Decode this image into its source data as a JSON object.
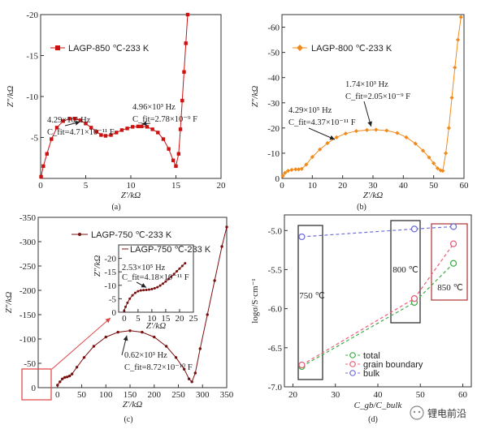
{
  "chart_data": [
    {
      "type": "line",
      "panel": "(a)",
      "xlabel": "Z′/kΩ",
      "ylabel": "Z″/kΩ",
      "xlim": [
        0,
        20
      ],
      "ylim": [
        0,
        -20
      ],
      "xticks": [
        0,
        5,
        10,
        15,
        20
      ],
      "yticks": [
        -20,
        -15,
        -10,
        -5
      ],
      "color": "#cc1111",
      "marker": "square",
      "series": [
        {
          "name": "LAGP-850 ℃-233 K",
          "x": [
            0.05,
            0.3,
            0.7,
            1.2,
            1.8,
            2.5,
            3.2,
            3.8,
            4.4,
            5.0,
            5.6,
            6.2,
            6.7,
            7.2,
            7.8,
            8.4,
            9.0,
            9.6,
            10.2,
            10.8,
            11.2,
            11.8,
            12.4,
            13.0,
            13.6,
            14.2,
            14.7,
            15.0,
            15.3,
            15.5,
            15.7,
            15.9,
            16.1,
            16.3
          ],
          "y": [
            -0.2,
            -1.5,
            -3.0,
            -4.8,
            -6.2,
            -7.0,
            -7.3,
            -7.3,
            -7.1,
            -6.7,
            -6.2,
            -5.7,
            -5.3,
            -5.2,
            -5.3,
            -5.6,
            -5.9,
            -6.1,
            -6.3,
            -6.35,
            -6.35,
            -6.3,
            -6.0,
            -5.6,
            -4.8,
            -3.6,
            -2.2,
            -1.5,
            -3.0,
            -6.0,
            -9.5,
            -13.0,
            -16.5,
            -20.0
          ]
        }
      ],
      "annotations": [
        {
          "text": "4.29×10⁵ Hz",
          "at_x": 4.2,
          "at_y": -7.3
        },
        {
          "text": "C_fit=4.71×10⁻¹¹ F"
        },
        {
          "text": "4.96×10³ Hz",
          "at_x": 11.2,
          "at_y": -6.35
        },
        {
          "text": "C_fit=2.78×10⁻⁹ F"
        }
      ]
    },
    {
      "type": "line",
      "panel": "(b)",
      "xlabel": "Z′/kΩ",
      "ylabel": "Z″/kΩ",
      "xlim": [
        0,
        60
      ],
      "ylim": [
        0,
        -65
      ],
      "xticks": [
        0,
        10,
        20,
        30,
        40,
        50,
        60
      ],
      "yticks": [
        -60,
        -50,
        -40,
        -30,
        -20,
        -10,
        0
      ],
      "color": "#f08a1c",
      "marker": "diamond",
      "series": [
        {
          "name": "LAGP-800 ℃-233 K",
          "x": [
            0.3,
            1.0,
            2.0,
            3.2,
            4.5,
            5.5,
            6.5,
            8.0,
            10.0,
            12.5,
            15.0,
            18.0,
            21.0,
            24.5,
            28.0,
            31.0,
            34.5,
            38.0,
            41.0,
            44.0,
            46.5,
            48.5,
            50.0,
            51.3,
            52.3,
            53.0,
            54.0,
            55.0,
            56.0,
            57.0,
            58.0,
            59.0
          ],
          "y": [
            -1.0,
            -2.2,
            -3.0,
            -3.4,
            -3.6,
            -3.6,
            -3.8,
            -5.5,
            -8.5,
            -11.5,
            -14.0,
            -16.3,
            -17.8,
            -18.8,
            -19.2,
            -19.3,
            -19.0,
            -18.0,
            -16.3,
            -13.8,
            -11.0,
            -8.3,
            -6.0,
            -4.0,
            -3.2,
            -3.0,
            -10.0,
            -20.0,
            -32.0,
            -44.0,
            -55.0,
            -64.0
          ]
        }
      ],
      "annotations": [
        {
          "text": "4.29×10⁵ Hz",
          "at_x": 3.2,
          "at_y": -3.4
        },
        {
          "text": "C_fit=4.37×10⁻¹¹ F"
        },
        {
          "text": "1.74×10³ Hz",
          "at_x": 31.0,
          "at_y": -19.3
        },
        {
          "text": "C_fit=2.05×10⁻⁹ F"
        }
      ]
    },
    {
      "type": "line",
      "panel": "(c)",
      "xlabel": "Z′/kΩ",
      "ylabel": "Z″/kΩ",
      "xlim": [
        -40,
        350
      ],
      "ylim": [
        0,
        -350
      ],
      "xticks": [
        0,
        50,
        100,
        150,
        200,
        250,
        300,
        350
      ],
      "yticks": [
        -350,
        -300,
        -250,
        -200,
        -150,
        -100,
        -50,
        0
      ],
      "color": "#7a1010",
      "marker": "dot",
      "series": [
        {
          "name": "LAGP-750 ℃-233 K",
          "x": [
            0,
            5,
            10,
            15,
            20,
            25,
            30,
            40,
            55,
            75,
            100,
            125,
            150,
            175,
            200,
            225,
            245,
            262,
            272,
            278,
            285,
            295,
            310,
            325,
            340,
            350
          ],
          "y": [
            -5,
            -12,
            -18,
            -21,
            -22,
            -24,
            -28,
            -42,
            -62,
            -85,
            -104,
            -114,
            -117,
            -114,
            -104,
            -85,
            -62,
            -38,
            -18,
            -12,
            -30,
            -80,
            -150,
            -220,
            -290,
            -330
          ]
        }
      ],
      "inset": {
        "xlim": [
          -2,
          25
        ],
        "ylim": [
          0,
          -25
        ],
        "xticks": [
          0,
          5,
          10,
          15,
          20,
          25
        ],
        "yticks": [
          -20,
          -15,
          -10,
          -5,
          0
        ],
        "xlabel": "Z′/kΩ",
        "ylabel": "Z″/kΩ",
        "series": [
          {
            "name": "LAGP-750 ℃-233 K",
            "x": [
              0.0,
              0.5,
              1.2,
              2.0,
              3.0,
              4.0,
              5.0,
              6.0,
              7.0,
              8.0,
              9.0,
              10.0,
              11.0,
              12.0,
              13.0,
              14.0,
              15.0,
              16.0,
              17.0,
              18.0,
              19.0,
              20.0,
              21.0,
              22.0
            ],
            "y": [
              -0.5,
              -2.0,
              -3.5,
              -5.0,
              -6.3,
              -7.2,
              -7.8,
              -8.1,
              -8.2,
              -8.3,
              -8.4,
              -8.6,
              -8.9,
              -9.3,
              -9.9,
              -10.6,
              -11.4,
              -12.3,
              -13.2,
              -14.2,
              -15.2,
              -16.2,
              -17.2,
              -18.2
            ]
          }
        ]
      },
      "annotations": [
        {
          "text": "2.53×10⁵ Hz",
          "at_x": 8.0,
          "at_y": -8.3
        },
        {
          "text": "C_fit=4.18×10⁻¹¹ F"
        },
        {
          "text": "0.62×10³ Hz",
          "at_x": 150,
          "at_y": -117
        },
        {
          "text": "C_fit=8.72×10⁻¹⁰ F"
        }
      ]
    },
    {
      "type": "scatter",
      "panel": "(d)",
      "xlabel": "C_gb/C_bulk",
      "ylabel": "logσ/S·cm⁻¹",
      "xlim": [
        18,
        62
      ],
      "ylim": [
        -7.0,
        -4.8
      ],
      "xticks": [
        20,
        30,
        40,
        50,
        60
      ],
      "yticks": [
        -7.0,
        -6.5,
        -6.0,
        -5.5,
        -5.0
      ],
      "series": [
        {
          "name": "total",
          "color": "#3fae4a",
          "x": [
            22.1,
            48.6,
            57.8
          ],
          "y": [
            -6.74,
            -5.92,
            -5.42
          ]
        },
        {
          "name": "grain boundary",
          "color": "#e8607a",
          "x": [
            22.1,
            48.6,
            57.8
          ],
          "y": [
            -6.72,
            -5.87,
            -5.17
          ]
        },
        {
          "name": "bulk",
          "color": "#7070d8",
          "x": [
            22.1,
            48.6,
            57.8
          ],
          "y": [
            -5.08,
            -4.98,
            -4.95
          ]
        }
      ],
      "group_labels": [
        "750 ℃",
        "800 ℃",
        "850 ℃"
      ],
      "legend": "lower-right"
    }
  ],
  "captions": [
    "(a)",
    "(b)",
    "(c)",
    "(d)"
  ],
  "watermark": "锂电前沿"
}
